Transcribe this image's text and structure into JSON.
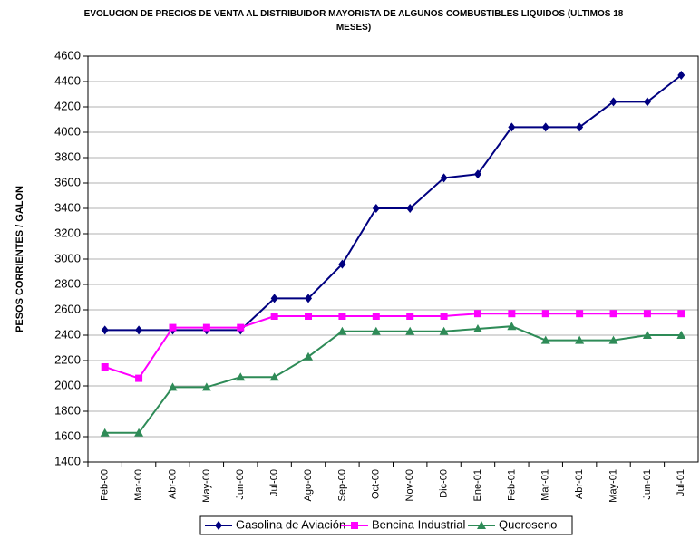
{
  "chart_data": {
    "type": "line",
    "title": "EVOLUCION DE PRECIOS DE VENTA AL DISTRIBUIDOR MAYORISTA DE ALGUNOS COMBUSTIBLES LIQUIDOS (ULTIMOS 18 MESES)",
    "y_label": "PESOS CORRIENTES / GALON",
    "categories": [
      "Feb-00",
      "Mar-00",
      "Abr-00",
      "May-00",
      "Jun-00",
      "Jul-00",
      "Ago-00",
      "Sep-00",
      "Oct-00",
      "Nov-00",
      "Dic-00",
      "Ene-01",
      "Feb-01",
      "Mar-01",
      "Abr-01",
      "May-01",
      "Jun-01",
      "Jul-01"
    ],
    "series": [
      {
        "name": "Gasolina de Aviación",
        "color": "#000080",
        "marker": "diamond",
        "values": [
          2440,
          2440,
          2440,
          2440,
          2440,
          2690,
          2690,
          2960,
          3400,
          3400,
          3640,
          3670,
          4040,
          4040,
          4040,
          4240,
          4240,
          4450
        ]
      },
      {
        "name": "Bencina Industrial",
        "color": "#ff00ff",
        "marker": "square",
        "values": [
          2150,
          2060,
          2460,
          2460,
          2460,
          2550,
          2550,
          2550,
          2550,
          2550,
          2550,
          2570,
          2570,
          2570,
          2570,
          2570,
          2570,
          2570
        ]
      },
      {
        "name": "Queroseno",
        "color": "#2e8b57",
        "marker": "triangle",
        "values": [
          1630,
          1630,
          1990,
          1990,
          2070,
          2070,
          2230,
          2430,
          2430,
          2430,
          2430,
          2450,
          2470,
          2360,
          2360,
          2360,
          2400,
          2400
        ]
      }
    ],
    "ylim": [
      1400,
      4600
    ],
    "yticks": [
      1400,
      1600,
      1800,
      2000,
      2200,
      2400,
      2600,
      2800,
      3000,
      3200,
      3400,
      3600,
      3800,
      4000,
      4200,
      4400,
      4600
    ],
    "grid": true,
    "legend": "bottom"
  }
}
